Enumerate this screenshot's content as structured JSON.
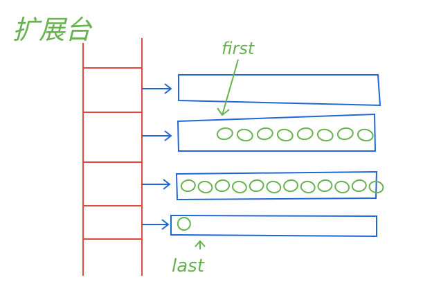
{
  "title": "扩展台",
  "labels": {
    "first": "first",
    "last": "last"
  },
  "buffers": [
    {
      "count": 0
    },
    {
      "count": 8
    },
    {
      "count": 12
    },
    {
      "count": 1
    }
  ],
  "colors": {
    "stack": "#e2473b",
    "buffer": "#1f66d6",
    "label": "#67b24f"
  }
}
